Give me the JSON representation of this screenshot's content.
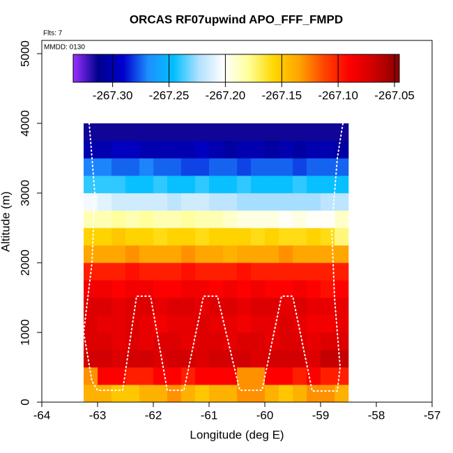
{
  "chart_data": {
    "type": "heatmap",
    "title": "ORCAS RF07upwind APO_FFF_FMPD",
    "flights_note": "Flts: 7",
    "date_note": "MMDD: 0130",
    "x_label": "Longitude (deg E)",
    "y_label": "Altitude (m)",
    "xlim": [
      -64,
      -57
    ],
    "ylim": [
      0,
      5190
    ],
    "xticks": [
      -64,
      -63,
      -62,
      -61,
      -60,
      -59,
      -58,
      -57
    ],
    "yticks": [
      0,
      1000,
      2000,
      3000,
      4000,
      5000
    ],
    "x_edges": [
      -63.25,
      -63.0,
      -62.75,
      -62.5,
      -62.25,
      -62.0,
      -61.75,
      -61.5,
      -61.25,
      -61.0,
      -60.75,
      -60.5,
      -60.25,
      -60.0,
      -59.75,
      -59.5,
      -59.25,
      -59.0,
      -58.75,
      -58.5
    ],
    "y_edges": [
      0,
      250,
      500,
      750,
      1000,
      1250,
      1500,
      1750,
      2000,
      2250,
      2500,
      2750,
      3000,
      3250,
      3500,
      3750,
      4000
    ],
    "values": [
      [
        -267.14,
        -267.14,
        -267.15,
        -267.15,
        -267.14,
        -267.14,
        -267.13,
        -267.14,
        -267.15,
        -267.14,
        -267.14,
        -267.13,
        -267.13,
        -267.14,
        -267.15,
        -267.14,
        -267.13,
        -267.13,
        -267.14
      ],
      [
        -267.13,
        -267.09,
        -267.09,
        -267.1,
        -267.1,
        -267.09,
        -267.09,
        -267.1,
        -267.09,
        -267.09,
        -267.09,
        -267.13,
        -267.13,
        -267.09,
        -267.09,
        -267.1,
        -267.09,
        -267.1,
        -267.1
      ],
      [
        -267.07,
        -267.07,
        -267.075,
        -267.07,
        -267.07,
        -267.075,
        -267.07,
        -267.07,
        -267.075,
        -267.07,
        -267.07,
        -267.07,
        -267.075,
        -267.07,
        -267.07,
        -267.07,
        -267.075,
        -267.065,
        -267.065
      ],
      [
        -267.075,
        -267.075,
        -267.08,
        -267.075,
        -267.08,
        -267.075,
        -267.075,
        -267.08,
        -267.075,
        -267.075,
        -267.08,
        -267.075,
        -267.075,
        -267.08,
        -267.075,
        -267.075,
        -267.08,
        -267.075,
        -267.075
      ],
      [
        -267.075,
        -267.08,
        -267.08,
        -267.075,
        -267.08,
        -267.085,
        -267.08,
        -267.08,
        -267.075,
        -267.08,
        -267.08,
        -267.085,
        -267.08,
        -267.08,
        -267.075,
        -267.08,
        -267.085,
        -267.085,
        -267.08
      ],
      [
        -267.075,
        -267.075,
        -267.08,
        -267.075,
        -267.075,
        -267.08,
        -267.075,
        -267.075,
        -267.08,
        -267.075,
        -267.075,
        -267.08,
        -267.075,
        -267.075,
        -267.08,
        -267.075,
        -267.08,
        -267.08,
        -267.08
      ],
      [
        -267.085,
        -267.085,
        -267.09,
        -267.085,
        -267.085,
        -267.09,
        -267.09,
        -267.085,
        -267.085,
        -267.09,
        -267.085,
        -267.09,
        -267.085,
        -267.09,
        -267.09,
        -267.085,
        -267.09,
        -267.095,
        -267.09
      ],
      [
        -267.1,
        -267.1,
        -267.1,
        -267.095,
        -267.1,
        -267.1,
        -267.1,
        -267.095,
        -267.1,
        -267.1,
        -267.1,
        -267.095,
        -267.1,
        -267.1,
        -267.1,
        -267.1,
        -267.1,
        -267.1,
        -267.1
      ],
      [
        -267.135,
        -267.135,
        -267.135,
        -267.13,
        -267.135,
        -267.135,
        -267.135,
        -267.13,
        -267.135,
        -267.135,
        -267.14,
        -267.135,
        -267.135,
        -267.135,
        -267.13,
        -267.135,
        -267.135,
        -267.135,
        -267.135
      ],
      [
        -267.155,
        -267.155,
        -267.15,
        -267.155,
        -267.155,
        -267.16,
        -267.155,
        -267.155,
        -267.16,
        -267.155,
        -267.155,
        -267.155,
        -267.16,
        -267.155,
        -267.16,
        -267.16,
        -267.155,
        -267.16,
        -267.175
      ],
      [
        -267.185,
        -267.185,
        -267.18,
        -267.185,
        -267.18,
        -267.185,
        -267.185,
        -267.18,
        -267.185,
        -267.185,
        -267.19,
        -267.195,
        -267.195,
        -267.195,
        -267.2,
        -267.195,
        -267.2,
        -267.2,
        -267.19
      ],
      [
        -267.205,
        -267.21,
        -267.215,
        -267.215,
        -267.215,
        -267.215,
        -267.22,
        -267.215,
        -267.215,
        -267.22,
        -267.22,
        -267.225,
        -267.225,
        -267.225,
        -267.225,
        -267.225,
        -267.225,
        -267.22,
        -267.22
      ],
      [
        -267.24,
        -267.24,
        -267.24,
        -267.245,
        -267.245,
        -267.24,
        -267.245,
        -267.245,
        -267.24,
        -267.245,
        -267.245,
        -267.24,
        -267.245,
        -267.245,
        -267.245,
        -267.24,
        -267.245,
        -267.245,
        -267.245
      ],
      [
        -267.27,
        -267.27,
        -267.275,
        -267.275,
        -267.27,
        -267.275,
        -267.275,
        -267.28,
        -267.28,
        -267.275,
        -267.275,
        -267.28,
        -267.275,
        -267.275,
        -267.275,
        -267.28,
        -267.275,
        -267.275,
        -267.275
      ],
      [
        -267.3,
        -267.3,
        -267.295,
        -267.295,
        -267.3,
        -267.3,
        -267.3,
        -267.3,
        -267.295,
        -267.3,
        -267.305,
        -267.3,
        -267.3,
        -267.305,
        -267.3,
        -267.305,
        -267.3,
        -267.3,
        -267.305
      ],
      [
        -267.315,
        -267.315,
        -267.315,
        -267.315,
        -267.315,
        -267.315,
        -267.315,
        -267.315,
        -267.315,
        -267.315,
        -267.315,
        -267.315,
        -267.315,
        -267.315,
        -267.315,
        -267.315,
        -267.315,
        -267.315,
        -267.315
      ]
    ],
    "clim": [
      -267.335,
      -267.0457
    ],
    "colormap": [
      "#9b30ff",
      "#00008b",
      "#0000cd",
      "#1e90ff",
      "#00bfff",
      "#b0e0ff",
      "#ffffff",
      "#ffff99",
      "#ffd700",
      "#ffa500",
      "#ff4500",
      "#ff0000",
      "#cd0000",
      "#8b0000"
    ],
    "colorbar_ticks": [
      {
        "value": -267.3,
        "label": "-267.30"
      },
      {
        "value": -267.25,
        "label": "-267.25"
      },
      {
        "value": -267.2,
        "label": "-267.20"
      },
      {
        "value": -267.15,
        "label": "-267.15"
      },
      {
        "value": -267.1,
        "label": "-267.10"
      },
      {
        "value": -267.05,
        "label": "-267.05"
      }
    ],
    "track": {
      "color": "#ffffff",
      "x": [
        -63.15,
        -63.05,
        -63.1,
        -63.25,
        -63.1,
        -63.0,
        -62.55,
        -62.3,
        -62.05,
        -61.75,
        -61.45,
        -61.1,
        -60.85,
        -60.45,
        -60.05,
        -59.7,
        -59.5,
        -59.15,
        -58.7,
        -58.65,
        -58.75,
        -58.8,
        -58.7,
        -58.6
      ],
      "y": [
        4000,
        3000,
        2000,
        1000,
        300,
        170,
        170,
        1520,
        1520,
        170,
        170,
        1520,
        1520,
        170,
        170,
        1520,
        1520,
        160,
        160,
        500,
        1500,
        2500,
        3500,
        4000
      ]
    }
  }
}
